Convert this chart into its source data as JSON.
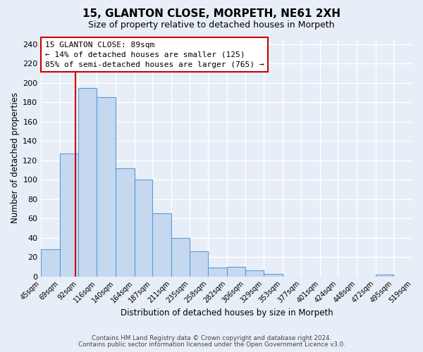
{
  "title": "15, GLANTON CLOSE, MORPETH, NE61 2XH",
  "subtitle": "Size of property relative to detached houses in Morpeth",
  "xlabel": "Distribution of detached houses by size in Morpeth",
  "ylabel": "Number of detached properties",
  "bin_edges": [
    45,
    69,
    92,
    116,
    140,
    164,
    187,
    211,
    235,
    258,
    282,
    306,
    329,
    353,
    377,
    401,
    424,
    448,
    472,
    495,
    519
  ],
  "bar_heights": [
    28,
    127,
    195,
    185,
    112,
    100,
    65,
    40,
    26,
    9,
    10,
    6,
    3,
    0,
    0,
    0,
    0,
    0,
    2,
    0
  ],
  "bar_color": "#c5d8f0",
  "bar_edge_color": "#5b9bd5",
  "property_size": 89,
  "property_line_color": "#cc0000",
  "annotation_line1": "15 GLANTON CLOSE: 89sqm",
  "annotation_line2": "← 14% of detached houses are smaller (125)",
  "annotation_line3": "85% of semi-detached houses are larger (765) →",
  "annotation_box_facecolor": "#ffffff",
  "annotation_box_edgecolor": "#cc0000",
  "ylim_max": 245,
  "yticks": [
    0,
    20,
    40,
    60,
    80,
    100,
    120,
    140,
    160,
    180,
    200,
    220,
    240
  ],
  "fig_bg_color": "#e8eef8",
  "plot_bg_color": "#e8eef8",
  "grid_color": "#ffffff",
  "footer_line1": "Contains HM Land Registry data © Crown copyright and database right 2024.",
  "footer_line2": "Contains public sector information licensed under the Open Government Licence v3.0."
}
